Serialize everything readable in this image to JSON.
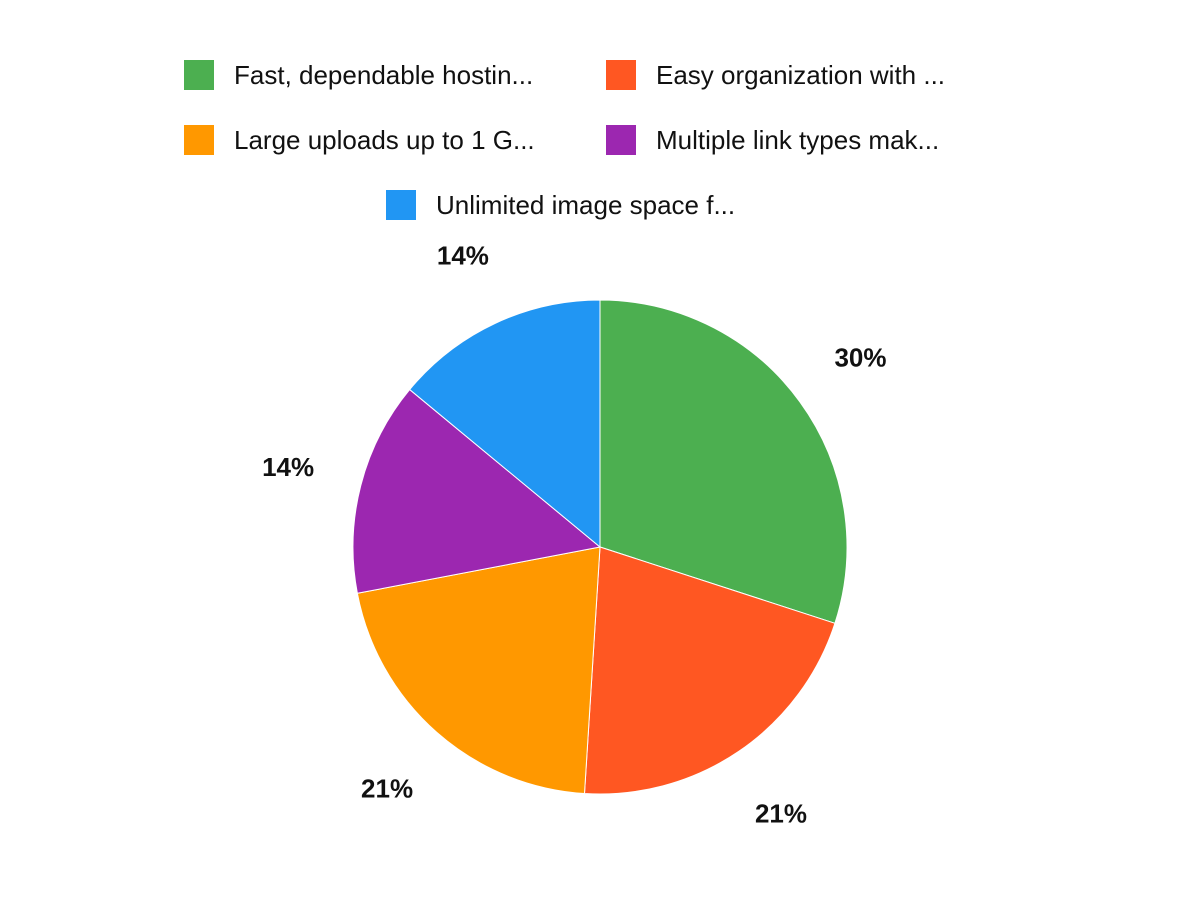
{
  "chart_data": {
    "type": "pie",
    "title": "",
    "legend_position": "top",
    "start_angle": "12 o'clock, clockwise",
    "slices": [
      {
        "label": "Fast, dependable hostin...",
        "value": 30,
        "data_label": "30%",
        "color": "#4CAF50"
      },
      {
        "label": "Easy organization with ...",
        "value": 21,
        "data_label": "21%",
        "color": "#FF5722"
      },
      {
        "label": "Large uploads up to 1 G...",
        "value": 21,
        "data_label": "21%",
        "color": "#FF9800"
      },
      {
        "label": "Multiple link types mak...",
        "value": 14,
        "data_label": "14%",
        "color": "#9C27B0"
      },
      {
        "label": "Unlimited image space f...",
        "value": 14,
        "data_label": "14%",
        "color": "#2196F3"
      }
    ]
  }
}
